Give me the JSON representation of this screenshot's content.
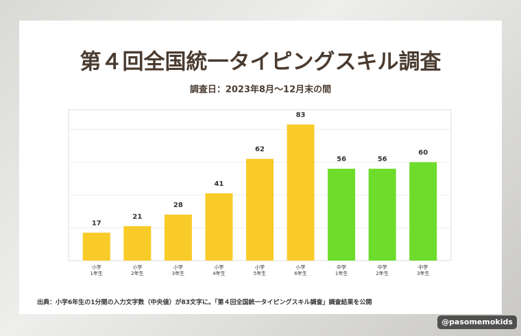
{
  "chart_data": {
    "type": "bar",
    "title": "第４回全国統一タイピングスキル調査",
    "subtitle": "調査日：2023年8月〜12月末の間",
    "categories": [
      "小学\n1年生",
      "小学\n2年生",
      "小学\n3年生",
      "小学\n4年生",
      "小学\n5年生",
      "小学\n6年生",
      "中学\n1年生",
      "中学\n2年生",
      "中学\n3年生"
    ],
    "values": [
      17,
      21,
      28,
      41,
      62,
      83,
      56,
      56,
      60
    ],
    "colors": [
      "#f9cb28",
      "#f9cb28",
      "#f9cb28",
      "#f9cb28",
      "#f9cb28",
      "#f9cb28",
      "#6ddc2a",
      "#6ddc2a",
      "#6ddc2a"
    ],
    "ylim": [
      0,
      92
    ],
    "yticks": [
      20,
      40,
      60,
      80
    ],
    "grid": true,
    "note": "出典：小学6年生の1分間の入力文字数（中央値）が83文字に。「第４回全国統一タイピングスキル調査」調査結果を公開",
    "watermark": "@pasomemokids"
  }
}
